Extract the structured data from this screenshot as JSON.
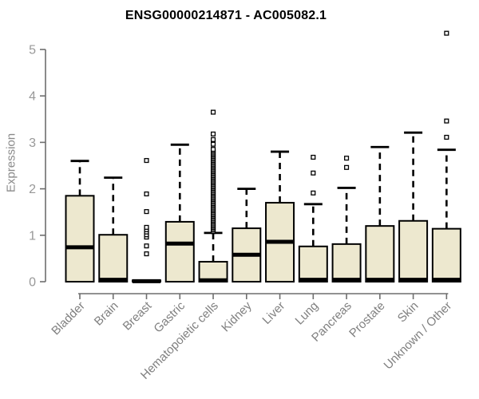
{
  "chart_data": {
    "type": "boxplot",
    "title": "ENSG00000214871 - AC005082.1",
    "ylabel": "Expression",
    "xlabel": "",
    "ylim": [
      0,
      5
    ],
    "yticks": [
      0,
      1,
      2,
      3,
      4,
      5
    ],
    "grid": false,
    "legend": "none",
    "colors": {
      "box_fill": "#ede8cf",
      "box_stroke": "#000000",
      "median": "#000000",
      "whisker": "#000000",
      "outlier_fill": "#ffffff",
      "outlier_stroke": "#000000",
      "axis": "#6e6e6e",
      "ytick_text": "#989898",
      "xtick_text": "#808080",
      "title_text": "#000000"
    },
    "categories": [
      "Bladder",
      "Brain",
      "Breast",
      "Gastric",
      "Hematopoietic cells",
      "Kidney",
      "Liver",
      "Lung",
      "Pancreas",
      "Prostate",
      "Skin",
      "Unknown / Other"
    ],
    "series": [
      {
        "category": "Bladder",
        "q1": 0,
        "median": 0.74,
        "q3": 1.85,
        "whisker_low": 0,
        "whisker_high": 2.6,
        "outliers": []
      },
      {
        "category": "Brain",
        "q1": 0,
        "median": 0.04,
        "q3": 1.01,
        "whisker_low": 0,
        "whisker_high": 2.24,
        "outliers": []
      },
      {
        "category": "Breast",
        "q1": 0,
        "median": 0.01,
        "q3": 0.03,
        "whisker_low": 0,
        "whisker_high": 0.03,
        "outliers": [
          0.6,
          0.77,
          0.96,
          1.01,
          1.07,
          1.12,
          1.17,
          1.51,
          1.89,
          2.61
        ]
      },
      {
        "category": "Gastric",
        "q1": 0,
        "median": 0.82,
        "q3": 1.29,
        "whisker_low": 0,
        "whisker_high": 2.95,
        "outliers": []
      },
      {
        "category": "Hematopoietic cells",
        "q1": 0,
        "median": 0.03,
        "q3": 0.43,
        "whisker_low": 0,
        "whisker_high": 1.05,
        "outliers": [
          1.08,
          1.11,
          1.14,
          1.17,
          1.2,
          1.23,
          1.26,
          1.29,
          1.32,
          1.35,
          1.38,
          1.41,
          1.44,
          1.47,
          1.5,
          1.53,
          1.56,
          1.59,
          1.62,
          1.65,
          1.68,
          1.71,
          1.74,
          1.77,
          1.8,
          1.83,
          1.86,
          1.89,
          1.92,
          1.95,
          1.98,
          2.01,
          2.04,
          2.07,
          2.1,
          2.13,
          2.16,
          2.19,
          2.22,
          2.25,
          2.28,
          2.31,
          2.34,
          2.37,
          2.4,
          2.43,
          2.46,
          2.49,
          2.52,
          2.55,
          2.58,
          2.61,
          2.64,
          2.67,
          2.7,
          2.73,
          2.76,
          2.79,
          2.82,
          2.85,
          2.96,
          3.06,
          3.18,
          3.65
        ]
      },
      {
        "category": "Kidney",
        "q1": 0,
        "median": 0.58,
        "q3": 1.15,
        "whisker_low": 0,
        "whisker_high": 2.0,
        "outliers": []
      },
      {
        "category": "Liver",
        "q1": 0,
        "median": 0.86,
        "q3": 1.7,
        "whisker_low": 0,
        "whisker_high": 2.8,
        "outliers": []
      },
      {
        "category": "Lung",
        "q1": 0,
        "median": 0.04,
        "q3": 0.76,
        "whisker_low": 0,
        "whisker_high": 1.67,
        "outliers": [
          1.91,
          2.34,
          2.68
        ]
      },
      {
        "category": "Pancreas",
        "q1": 0,
        "median": 0.04,
        "q3": 0.81,
        "whisker_low": 0,
        "whisker_high": 2.02,
        "outliers": [
          2.46,
          2.66
        ]
      },
      {
        "category": "Prostate",
        "q1": 0,
        "median": 0.04,
        "q3": 1.2,
        "whisker_low": 0,
        "whisker_high": 2.9,
        "outliers": []
      },
      {
        "category": "Skin",
        "q1": 0,
        "median": 0.04,
        "q3": 1.31,
        "whisker_low": 0,
        "whisker_high": 3.21,
        "outliers": []
      },
      {
        "category": "Unknown / Other",
        "q1": 0,
        "median": 0.04,
        "q3": 1.14,
        "whisker_low": 0,
        "whisker_high": 2.84,
        "outliers": [
          3.11,
          3.46,
          5.35
        ]
      }
    ]
  }
}
